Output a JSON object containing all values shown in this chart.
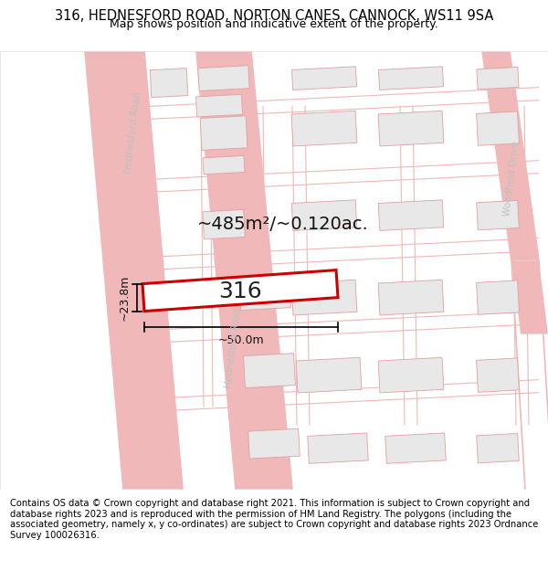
{
  "title_line1": "316, HEDNESFORD ROAD, NORTON CANES, CANNOCK, WS11 9SA",
  "title_line2": "Map shows position and indicative extent of the property.",
  "footer_text": "Contains OS data © Crown copyright and database right 2021. This information is subject to Crown copyright and database rights 2023 and is reproduced with the permission of HM Land Registry. The polygons (including the associated geometry, namely x, y co-ordinates) are subject to Crown copyright and database rights 2023 Ordnance Survey 100026316.",
  "area_label": "~485m²/~0.120ac.",
  "width_label": "~50.0m",
  "height_label": "~23.8m",
  "plot_number": "316",
  "map_bg": "#ffffff",
  "road_color": "#f0b8b8",
  "block_fill": "#e8e8e8",
  "block_outline": "#e0a0a0",
  "plot_fill": "#ffffff",
  "plot_outline": "#cc0000",
  "road_label_color": "#c0c0c0",
  "title_fontsize": 10.5,
  "subtitle_fontsize": 9,
  "footer_fontsize": 7.2,
  "area_fontsize": 14,
  "plot_num_fontsize": 18,
  "dim_fontsize": 9,
  "street_fontsize": 7.5
}
